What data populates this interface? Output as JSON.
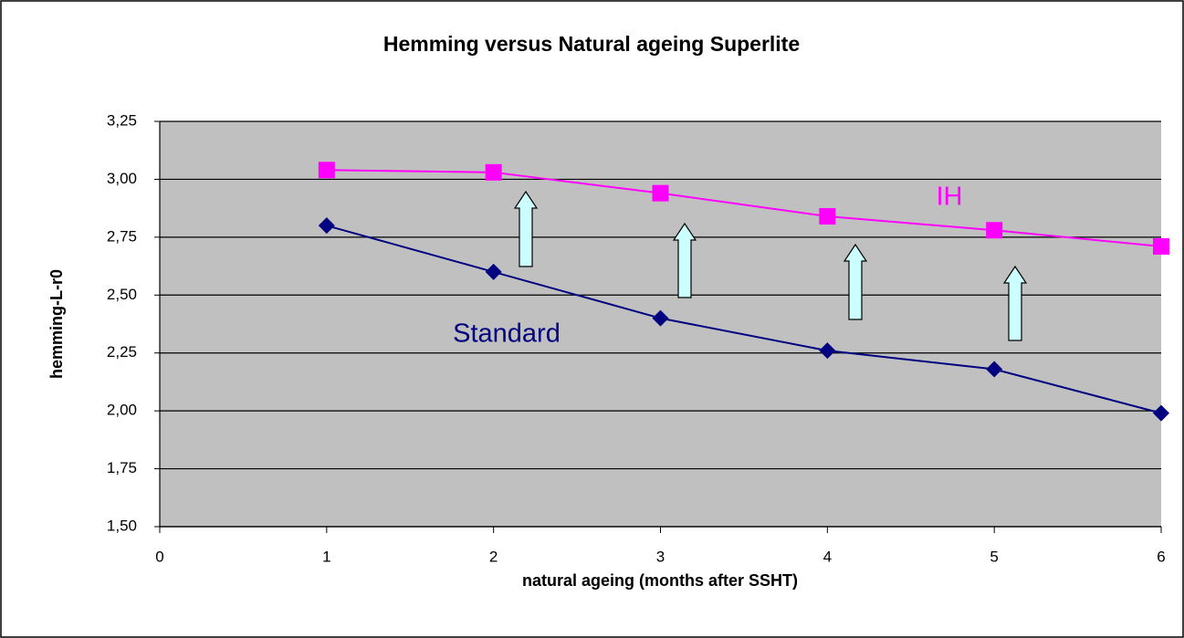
{
  "chart_data": {
    "type": "line",
    "title": "Hemming versus Natural ageing Superlite",
    "xlabel": "natural ageing (months after SSHT)",
    "ylabel": "hemming-L-r0",
    "x": [
      1,
      2,
      3,
      4,
      5,
      6
    ],
    "series": [
      {
        "name": "IH",
        "color": "#ff00ff",
        "marker": "square",
        "values": [
          3.04,
          3.03,
          2.94,
          2.84,
          2.78,
          2.71
        ]
      },
      {
        "name": "Standard",
        "color": "#000080",
        "marker": "diamond",
        "values": [
          2.8,
          2.6,
          2.4,
          2.26,
          2.18,
          1.99
        ]
      }
    ],
    "xlim": [
      0,
      6
    ],
    "xticks": [
      0,
      1,
      2,
      3,
      4,
      5,
      6
    ],
    "ylim": [
      1.5,
      3.25
    ],
    "yticks": [
      {
        "value": 1.5,
        "label": "1,50"
      },
      {
        "value": 1.75,
        "label": "1,75"
      },
      {
        "value": 2,
        "label": "2,00"
      },
      {
        "value": 2.25,
        "label": "2,25"
      },
      {
        "value": 2.5,
        "label": "2,50"
      },
      {
        "value": 2.75,
        "label": "2,75"
      },
      {
        "value": 3,
        "label": "3,00"
      },
      {
        "value": 3.25,
        "label": "3,25"
      }
    ],
    "grid": true
  }
}
